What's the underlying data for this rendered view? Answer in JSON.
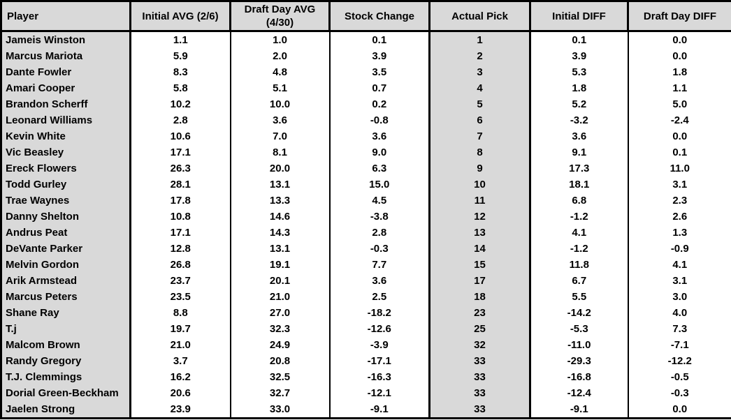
{
  "colors": {
    "header_bg": "#d9d9d9",
    "shaded_column_bg": "#d9d9d9",
    "border": "#000000",
    "text": "#000000",
    "cell_bg": "#ffffff"
  },
  "table": {
    "columns": [
      {
        "key": "player",
        "label": "Player"
      },
      {
        "key": "initial_avg",
        "label": "Initial AVG (2/6)"
      },
      {
        "key": "draft_day_avg",
        "label": "Draft Day AVG (4/30)"
      },
      {
        "key": "stock_change",
        "label": "Stock Change"
      },
      {
        "key": "actual_pick",
        "label": "Actual Pick"
      },
      {
        "key": "initial_diff",
        "label": "Initial DIFF"
      },
      {
        "key": "draft_day_diff",
        "label": "Draft Day DIFF"
      }
    ],
    "rows": [
      {
        "player": "Jameis Winston",
        "initial_avg": "1.1",
        "draft_day_avg": "1.0",
        "stock_change": "0.1",
        "actual_pick": "1",
        "initial_diff": "0.1",
        "draft_day_diff": "0.0"
      },
      {
        "player": "Marcus Mariota",
        "initial_avg": "5.9",
        "draft_day_avg": "2.0",
        "stock_change": "3.9",
        "actual_pick": "2",
        "initial_diff": "3.9",
        "draft_day_diff": "0.0"
      },
      {
        "player": "Dante Fowler",
        "initial_avg": "8.3",
        "draft_day_avg": "4.8",
        "stock_change": "3.5",
        "actual_pick": "3",
        "initial_diff": "5.3",
        "draft_day_diff": "1.8"
      },
      {
        "player": "Amari Cooper",
        "initial_avg": "5.8",
        "draft_day_avg": "5.1",
        "stock_change": "0.7",
        "actual_pick": "4",
        "initial_diff": "1.8",
        "draft_day_diff": "1.1"
      },
      {
        "player": "Brandon Scherff",
        "initial_avg": "10.2",
        "draft_day_avg": "10.0",
        "stock_change": "0.2",
        "actual_pick": "5",
        "initial_diff": "5.2",
        "draft_day_diff": "5.0"
      },
      {
        "player": "Leonard Williams",
        "initial_avg": "2.8",
        "draft_day_avg": "3.6",
        "stock_change": "-0.8",
        "actual_pick": "6",
        "initial_diff": "-3.2",
        "draft_day_diff": "-2.4"
      },
      {
        "player": "Kevin White",
        "initial_avg": "10.6",
        "draft_day_avg": "7.0",
        "stock_change": "3.6",
        "actual_pick": "7",
        "initial_diff": "3.6",
        "draft_day_diff": "0.0"
      },
      {
        "player": "Vic Beasley",
        "initial_avg": "17.1",
        "draft_day_avg": "8.1",
        "stock_change": "9.0",
        "actual_pick": "8",
        "initial_diff": "9.1",
        "draft_day_diff": "0.1"
      },
      {
        "player": "Ereck Flowers",
        "initial_avg": "26.3",
        "draft_day_avg": "20.0",
        "stock_change": "6.3",
        "actual_pick": "9",
        "initial_diff": "17.3",
        "draft_day_diff": "11.0"
      },
      {
        "player": "Todd Gurley",
        "initial_avg": "28.1",
        "draft_day_avg": "13.1",
        "stock_change": "15.0",
        "actual_pick": "10",
        "initial_diff": "18.1",
        "draft_day_diff": "3.1"
      },
      {
        "player": "Trae Waynes",
        "initial_avg": "17.8",
        "draft_day_avg": "13.3",
        "stock_change": "4.5",
        "actual_pick": "11",
        "initial_diff": "6.8",
        "draft_day_diff": "2.3"
      },
      {
        "player": "Danny Shelton",
        "initial_avg": "10.8",
        "draft_day_avg": "14.6",
        "stock_change": "-3.8",
        "actual_pick": "12",
        "initial_diff": "-1.2",
        "draft_day_diff": "2.6"
      },
      {
        "player": "Andrus Peat",
        "initial_avg": "17.1",
        "draft_day_avg": "14.3",
        "stock_change": "2.8",
        "actual_pick": "13",
        "initial_diff": "4.1",
        "draft_day_diff": "1.3"
      },
      {
        "player": "DeVante Parker",
        "initial_avg": "12.8",
        "draft_day_avg": "13.1",
        "stock_change": "-0.3",
        "actual_pick": "14",
        "initial_diff": "-1.2",
        "draft_day_diff": "-0.9"
      },
      {
        "player": "Melvin Gordon",
        "initial_avg": "26.8",
        "draft_day_avg": "19.1",
        "stock_change": "7.7",
        "actual_pick": "15",
        "initial_diff": "11.8",
        "draft_day_diff": "4.1"
      },
      {
        "player": "Arik Armstead",
        "initial_avg": "23.7",
        "draft_day_avg": "20.1",
        "stock_change": "3.6",
        "actual_pick": "17",
        "initial_diff": "6.7",
        "draft_day_diff": "3.1"
      },
      {
        "player": "Marcus Peters",
        "initial_avg": "23.5",
        "draft_day_avg": "21.0",
        "stock_change": "2.5",
        "actual_pick": "18",
        "initial_diff": "5.5",
        "draft_day_diff": "3.0"
      },
      {
        "player": "Shane Ray",
        "initial_avg": "8.8",
        "draft_day_avg": "27.0",
        "stock_change": "-18.2",
        "actual_pick": "23",
        "initial_diff": "-14.2",
        "draft_day_diff": "4.0"
      },
      {
        "player": "T.j",
        "initial_avg": "19.7",
        "draft_day_avg": "32.3",
        "stock_change": "-12.6",
        "actual_pick": "25",
        "initial_diff": "-5.3",
        "draft_day_diff": "7.3"
      },
      {
        "player": "Malcom Brown",
        "initial_avg": "21.0",
        "draft_day_avg": "24.9",
        "stock_change": "-3.9",
        "actual_pick": "32",
        "initial_diff": "-11.0",
        "draft_day_diff": "-7.1"
      },
      {
        "player": "Randy Gregory",
        "initial_avg": "3.7",
        "draft_day_avg": "20.8",
        "stock_change": "-17.1",
        "actual_pick": "33",
        "initial_diff": "-29.3",
        "draft_day_diff": "-12.2"
      },
      {
        "player": "T.J. Clemmings",
        "initial_avg": "16.2",
        "draft_day_avg": "32.5",
        "stock_change": "-16.3",
        "actual_pick": "33",
        "initial_diff": "-16.8",
        "draft_day_diff": "-0.5"
      },
      {
        "player": "Dorial Green-Beckham",
        "initial_avg": "20.6",
        "draft_day_avg": "32.7",
        "stock_change": "-12.1",
        "actual_pick": "33",
        "initial_diff": "-12.4",
        "draft_day_diff": "-0.3"
      },
      {
        "player": "Jaelen Strong",
        "initial_avg": "23.9",
        "draft_day_avg": "33.0",
        "stock_change": "-9.1",
        "actual_pick": "33",
        "initial_diff": "-9.1",
        "draft_day_diff": "0.0"
      }
    ]
  }
}
